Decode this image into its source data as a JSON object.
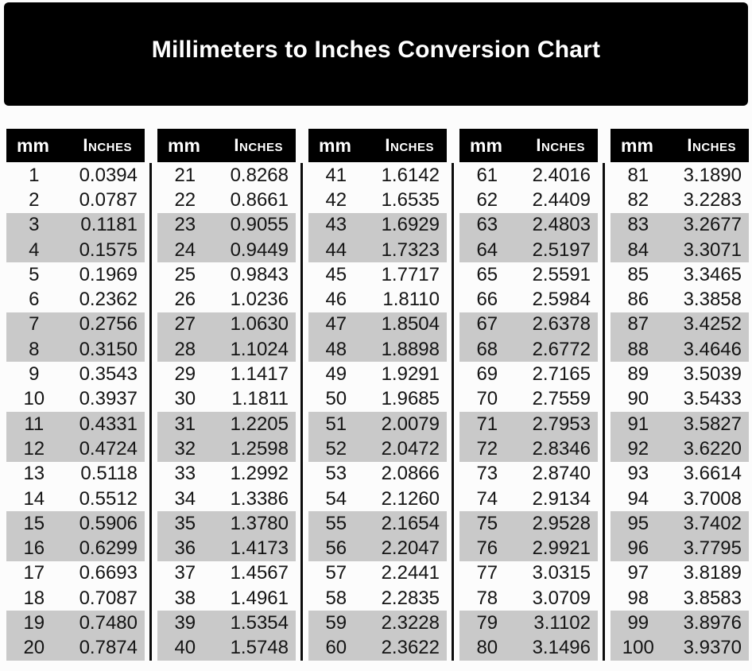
{
  "chart_data": {
    "type": "table",
    "title": "Millimeters to Inches Conversion Chart",
    "columns": [
      "mm",
      "Inches"
    ],
    "groups": [
      {
        "rows": [
          [
            "1",
            "0.0394"
          ],
          [
            "2",
            "0.0787"
          ],
          [
            "3",
            "0.1181"
          ],
          [
            "4",
            "0.1575"
          ],
          [
            "5",
            "0.1969"
          ],
          [
            "6",
            "0.2362"
          ],
          [
            "7",
            "0.2756"
          ],
          [
            "8",
            "0.3150"
          ],
          [
            "9",
            "0.3543"
          ],
          [
            "10",
            "0.3937"
          ],
          [
            "11",
            "0.4331"
          ],
          [
            "12",
            "0.4724"
          ],
          [
            "13",
            "0.5118"
          ],
          [
            "14",
            "0.5512"
          ],
          [
            "15",
            "0.5906"
          ],
          [
            "16",
            "0.6299"
          ],
          [
            "17",
            "0.6693"
          ],
          [
            "18",
            "0.7087"
          ],
          [
            "19",
            "0.7480"
          ],
          [
            "20",
            "0.7874"
          ]
        ]
      },
      {
        "rows": [
          [
            "21",
            "0.8268"
          ],
          [
            "22",
            "0.8661"
          ],
          [
            "23",
            "0.9055"
          ],
          [
            "24",
            "0.9449"
          ],
          [
            "25",
            "0.9843"
          ],
          [
            "26",
            "1.0236"
          ],
          [
            "27",
            "1.0630"
          ],
          [
            "28",
            "1.1024"
          ],
          [
            "29",
            "1.1417"
          ],
          [
            "30",
            "1.1811"
          ],
          [
            "31",
            "1.2205"
          ],
          [
            "32",
            "1.2598"
          ],
          [
            "33",
            "1.2992"
          ],
          [
            "34",
            "1.3386"
          ],
          [
            "35",
            "1.3780"
          ],
          [
            "36",
            "1.4173"
          ],
          [
            "37",
            "1.4567"
          ],
          [
            "38",
            "1.4961"
          ],
          [
            "39",
            "1.5354"
          ],
          [
            "40",
            "1.5748"
          ]
        ]
      },
      {
        "rows": [
          [
            "41",
            "1.6142"
          ],
          [
            "42",
            "1.6535"
          ],
          [
            "43",
            "1.6929"
          ],
          [
            "44",
            "1.7323"
          ],
          [
            "45",
            "1.7717"
          ],
          [
            "46",
            "1.8110"
          ],
          [
            "47",
            "1.8504"
          ],
          [
            "48",
            "1.8898"
          ],
          [
            "49",
            "1.9291"
          ],
          [
            "50",
            "1.9685"
          ],
          [
            "51",
            "2.0079"
          ],
          [
            "52",
            "2.0472"
          ],
          [
            "53",
            "2.0866"
          ],
          [
            "54",
            "2.1260"
          ],
          [
            "55",
            "2.1654"
          ],
          [
            "56",
            "2.2047"
          ],
          [
            "57",
            "2.2441"
          ],
          [
            "58",
            "2.2835"
          ],
          [
            "59",
            "2.3228"
          ],
          [
            "60",
            "2.3622"
          ]
        ]
      },
      {
        "rows": [
          [
            "61",
            "2.4016"
          ],
          [
            "62",
            "2.4409"
          ],
          [
            "63",
            "2.4803"
          ],
          [
            "64",
            "2.5197"
          ],
          [
            "65",
            "2.5591"
          ],
          [
            "66",
            "2.5984"
          ],
          [
            "67",
            "2.6378"
          ],
          [
            "68",
            "2.6772"
          ],
          [
            "69",
            "2.7165"
          ],
          [
            "70",
            "2.7559"
          ],
          [
            "71",
            "2.7953"
          ],
          [
            "72",
            "2.8346"
          ],
          [
            "73",
            "2.8740"
          ],
          [
            "74",
            "2.9134"
          ],
          [
            "75",
            "2.9528"
          ],
          [
            "76",
            "2.9921"
          ],
          [
            "77",
            "3.0315"
          ],
          [
            "78",
            "3.0709"
          ],
          [
            "79",
            "3.1102"
          ],
          [
            "80",
            "3.1496"
          ]
        ]
      },
      {
        "rows": [
          [
            "81",
            "3.1890"
          ],
          [
            "82",
            "3.2283"
          ],
          [
            "83",
            "3.2677"
          ],
          [
            "84",
            "3.3071"
          ],
          [
            "85",
            "3.3465"
          ],
          [
            "86",
            "3.3858"
          ],
          [
            "87",
            "3.4252"
          ],
          [
            "88",
            "3.4646"
          ],
          [
            "89",
            "3.5039"
          ],
          [
            "90",
            "3.5433"
          ],
          [
            "91",
            "3.5827"
          ],
          [
            "92",
            "3.6220"
          ],
          [
            "93",
            "3.6614"
          ],
          [
            "94",
            "3.7008"
          ],
          [
            "95",
            "3.7402"
          ],
          [
            "96",
            "3.7795"
          ],
          [
            "97",
            "3.8189"
          ],
          [
            "98",
            "3.8583"
          ],
          [
            "99",
            "3.8976"
          ],
          [
            "100",
            "3.9370"
          ]
        ]
      }
    ]
  },
  "colors": {
    "banner_bg": "#000000",
    "banner_text": "#ffffff",
    "header_bg": "#000000",
    "header_text": "#ffffff",
    "shaded_row": "#c9c9c9",
    "text": "#141414",
    "divider": "#0c0c0c",
    "page_bg": "#fcfcfc"
  }
}
